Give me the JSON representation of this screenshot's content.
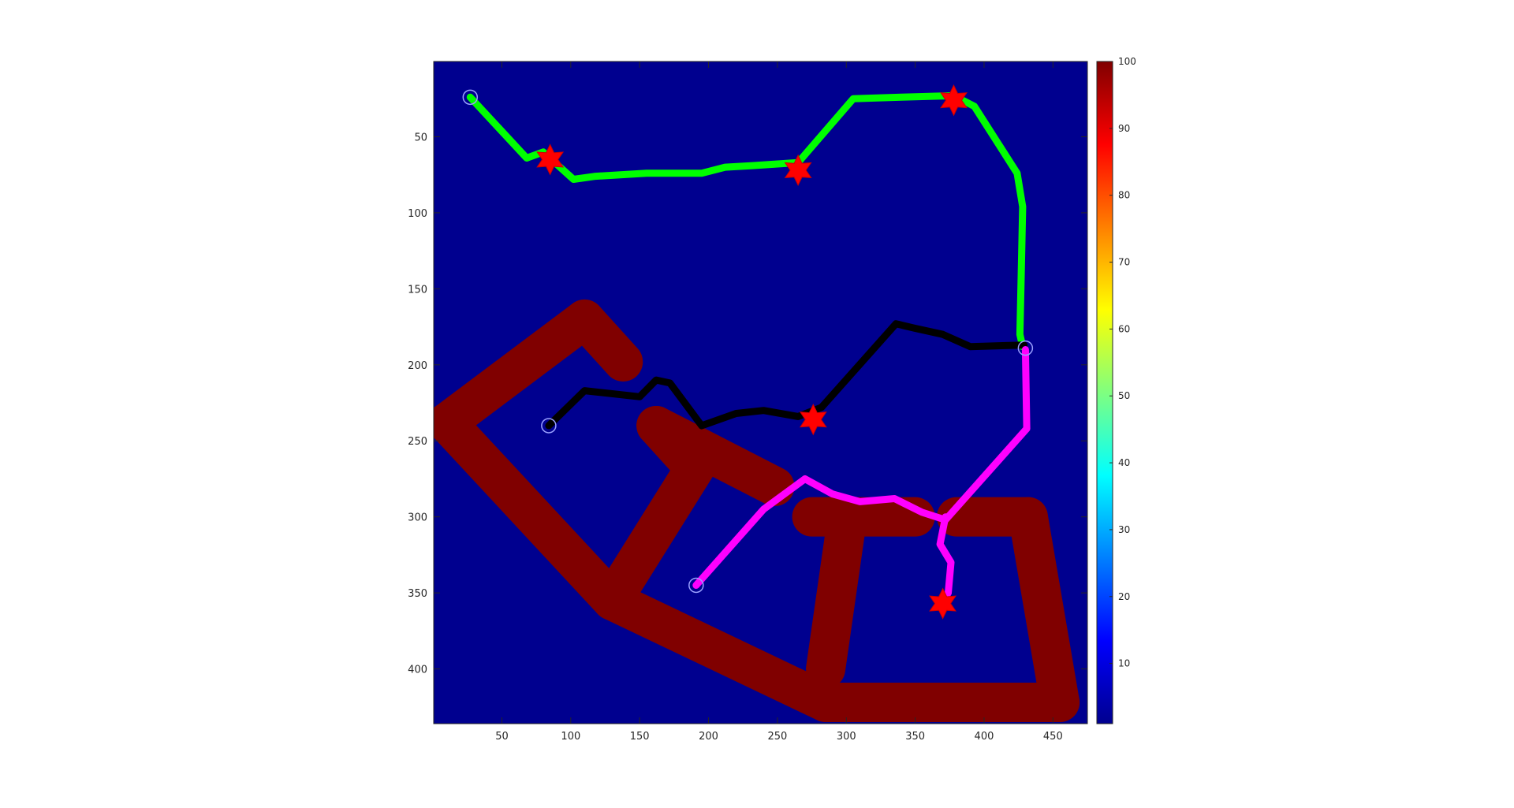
{
  "chart_data": {
    "type": "heatmap",
    "title": "",
    "xlabel": "",
    "ylabel": "",
    "xlim": [
      0.5,
      475
    ],
    "ylim": [
      436,
      0.5
    ],
    "y_direction": "reversed",
    "grid": false,
    "x_ticks": [
      50,
      100,
      150,
      200,
      250,
      300,
      350,
      400,
      450
    ],
    "y_ticks": [
      50,
      100,
      150,
      200,
      250,
      300,
      350,
      400
    ],
    "background_value": 1,
    "background_color": "#00008f",
    "obstacle_value": 100,
    "obstacle_color": "#800000",
    "colorbar": {
      "colormap": "jet",
      "range": [
        1,
        100
      ],
      "ticks": [
        10,
        20,
        30,
        40,
        50,
        60,
        70,
        80,
        90,
        100
      ],
      "placement": "right"
    },
    "obstacle_segments": [
      [
        [
          110,
          170
        ],
        [
          138,
          198
        ]
      ],
      [
        [
          110,
          170
        ],
        [
          10,
          238
        ]
      ],
      [
        [
          10,
          238
        ],
        [
          130,
          355
        ]
      ],
      [
        [
          130,
          355
        ],
        [
          285,
          422
        ]
      ],
      [
        [
          285,
          422
        ],
        [
          455,
          422
        ]
      ],
      [
        [
          455,
          422
        ],
        [
          432,
          300
        ]
      ],
      [
        [
          432,
          300
        ],
        [
          380,
          300
        ]
      ],
      [
        [
          350,
          300
        ],
        [
          275,
          300
        ]
      ],
      [
        [
          300,
          305
        ],
        [
          285,
          400
        ]
      ],
      [
        [
          248,
          280
        ],
        [
          162,
          240
        ]
      ],
      [
        [
          162,
          240
        ],
        [
          190,
          268
        ]
      ],
      [
        [
          190,
          268
        ],
        [
          130,
          355
        ]
      ]
    ],
    "series": [
      {
        "color": "#00ff00",
        "points": [
          [
            27,
            24
          ],
          [
            68,
            64
          ],
          [
            80,
            60
          ],
          [
            102,
            78
          ],
          [
            118,
            76
          ],
          [
            155,
            74
          ],
          [
            175,
            74
          ],
          [
            195,
            74
          ],
          [
            212,
            70
          ],
          [
            232,
            69
          ],
          [
            248,
            68
          ],
          [
            265,
            67
          ],
          [
            305,
            25
          ],
          [
            340,
            24
          ],
          [
            378,
            23
          ],
          [
            393,
            30
          ],
          [
            424,
            74
          ],
          [
            428,
            96
          ],
          [
            427,
            140
          ],
          [
            426,
            180
          ],
          [
            428,
            188
          ]
        ]
      },
      {
        "color": "#000000",
        "points": [
          [
            84,
            240
          ],
          [
            110,
            217
          ],
          [
            150,
            221
          ],
          [
            162,
            210
          ],
          [
            172,
            212
          ],
          [
            195,
            240
          ],
          [
            220,
            232
          ],
          [
            240,
            230
          ],
          [
            265,
            234
          ],
          [
            282,
            228
          ],
          [
            336,
            173
          ],
          [
            350,
            176
          ],
          [
            370,
            180
          ],
          [
            390,
            188
          ],
          [
            429,
            187
          ]
        ]
      },
      {
        "color": "#ff00ff",
        "points": [
          [
            191,
            345
          ],
          [
            240,
            295
          ],
          [
            270,
            275
          ],
          [
            290,
            285
          ],
          [
            310,
            290
          ],
          [
            335,
            288
          ],
          [
            355,
            297
          ],
          [
            372,
            302
          ],
          [
            431,
            242
          ],
          [
            430,
            190
          ]
        ]
      },
      {
        "color": "#ff00ff",
        "points": [
          [
            372,
            300
          ],
          [
            368,
            318
          ],
          [
            376,
            330
          ],
          [
            374,
            350
          ],
          [
            370,
            356
          ]
        ]
      }
    ],
    "start_markers": [
      [
        27,
        24
      ],
      [
        84,
        240
      ],
      [
        191,
        345
      ],
      [
        430,
        189
      ]
    ],
    "goal_markers": [
      [
        85,
        65
      ],
      [
        265,
        72
      ],
      [
        378,
        26
      ],
      [
        276,
        236
      ],
      [
        370,
        357
      ]
    ]
  }
}
